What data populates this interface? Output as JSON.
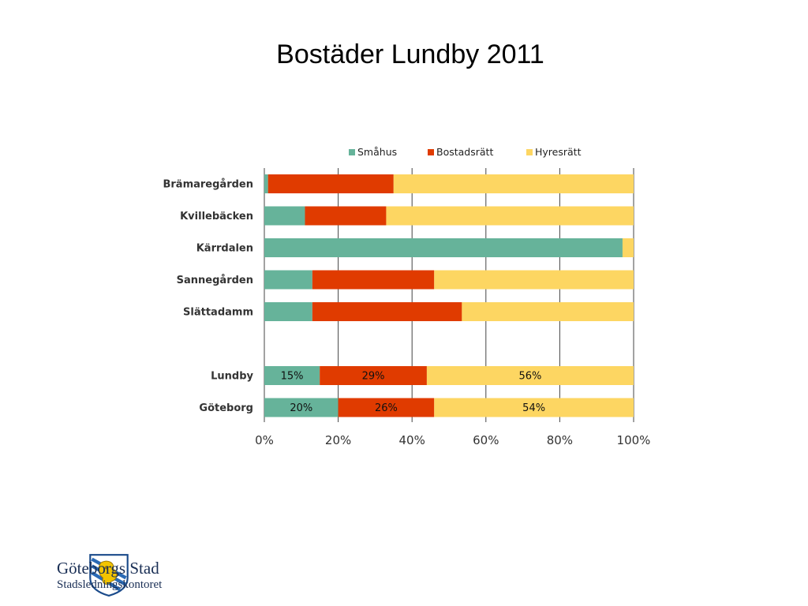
{
  "slide": {
    "title": "Bostäder Lundby 2011"
  },
  "logo": {
    "name": "Göteborgs Stad",
    "subtitle": "Stadsledningskontoret",
    "icon": "goteborg-lion-shield-icon"
  },
  "colors": {
    "smahus": "#66b39a",
    "bostadsratt": "#e03b00",
    "hyresratt": "#fdd662",
    "grid": "#444444",
    "text": "#222222"
  },
  "chart_data": {
    "type": "bar",
    "orientation": "horizontal",
    "stacked": true,
    "normalized": true,
    "categories": [
      "Brämaregården",
      "Kvillebäcken",
      "Kärrdalen",
      "Sannegården",
      "Slättadamm",
      "",
      "Lundby",
      "Göteborg"
    ],
    "series": [
      {
        "name": "Småhus",
        "values": [
          1,
          11,
          97,
          13,
          13,
          null,
          15,
          20
        ],
        "labels": [
          "",
          "",
          "",
          "",
          "",
          "",
          "15%",
          "20%"
        ]
      },
      {
        "name": "Bostadsrätt",
        "values": [
          34,
          22,
          0,
          33,
          40.5,
          null,
          29,
          26
        ],
        "labels": [
          "",
          "",
          "",
          "",
          "",
          "",
          "29%",
          "26%"
        ]
      },
      {
        "name": "Hyresrätt",
        "values": [
          65,
          67,
          3,
          54,
          46.5,
          null,
          56,
          54
        ],
        "labels": [
          "",
          "",
          "",
          "",
          "",
          "",
          "56%",
          "54%"
        ]
      }
    ],
    "xlim": [
      0,
      100
    ],
    "xticks": [
      "0%",
      "20%",
      "40%",
      "60%",
      "80%",
      "100%"
    ],
    "grid": true,
    "legend": "top"
  }
}
